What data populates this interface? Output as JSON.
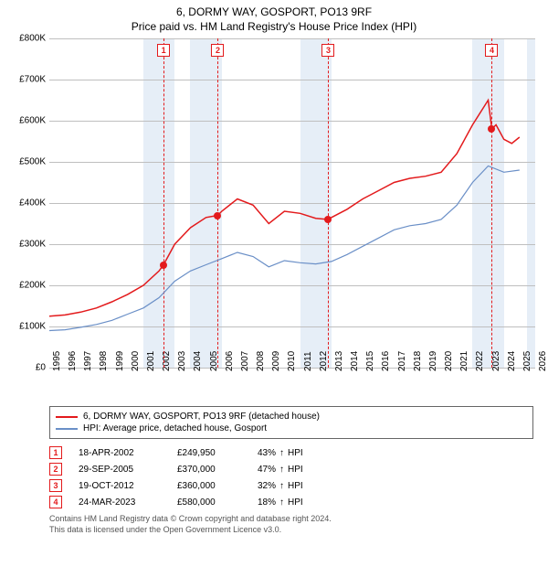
{
  "title": "6, DORMY WAY, GOSPORT, PO13 9RF",
  "subtitle": "Price paid vs. HM Land Registry's House Price Index (HPI)",
  "chart": {
    "type": "line",
    "background_color": "#ffffff",
    "grid_color": "#bfbfbf",
    "band_color": "#e6eef7",
    "y_axis": {
      "min": 0,
      "max": 800000,
      "step": 100000,
      "labels": [
        "£0",
        "£100K",
        "£200K",
        "£300K",
        "£400K",
        "£500K",
        "£600K",
        "£700K",
        "£800K"
      ],
      "label_fontsize": 10
    },
    "x_axis": {
      "min": 1995,
      "max": 2026,
      "step": 1,
      "labels": [
        "1995",
        "1996",
        "1997",
        "1998",
        "1999",
        "2000",
        "2001",
        "2002",
        "2003",
        "2004",
        "2005",
        "2006",
        "2007",
        "2008",
        "2009",
        "2010",
        "2011",
        "2012",
        "2013",
        "2014",
        "2015",
        "2016",
        "2017",
        "2018",
        "2019",
        "2020",
        "2021",
        "2022",
        "2023",
        "2024",
        "2025",
        "2026"
      ],
      "label_fontsize": 10
    },
    "bands": [
      {
        "from": 2001,
        "to": 2003
      },
      {
        "from": 2004,
        "to": 2006
      },
      {
        "from": 2011,
        "to": 2013
      },
      {
        "from": 2022,
        "to": 2024
      },
      {
        "from": 2025.5,
        "to": 2026
      }
    ],
    "series": [
      {
        "name": "price_paid",
        "label": "6, DORMY WAY, GOSPORT, PO13 9RF (detached house)",
        "color": "#e31a1c",
        "line_width": 1.5,
        "points": [
          [
            1995,
            125000
          ],
          [
            1996,
            128000
          ],
          [
            1997,
            135000
          ],
          [
            1998,
            145000
          ],
          [
            1999,
            160000
          ],
          [
            2000,
            178000
          ],
          [
            2001,
            200000
          ],
          [
            2002,
            235000
          ],
          [
            2002.29,
            249950
          ],
          [
            2003,
            300000
          ],
          [
            2004,
            340000
          ],
          [
            2005,
            365000
          ],
          [
            2005.75,
            370000
          ],
          [
            2006,
            380000
          ],
          [
            2007,
            410000
          ],
          [
            2008,
            395000
          ],
          [
            2009,
            350000
          ],
          [
            2010,
            380000
          ],
          [
            2011,
            375000
          ],
          [
            2012,
            363000
          ],
          [
            2012.8,
            360000
          ],
          [
            2013,
            365000
          ],
          [
            2014,
            385000
          ],
          [
            2015,
            410000
          ],
          [
            2016,
            430000
          ],
          [
            2017,
            450000
          ],
          [
            2018,
            460000
          ],
          [
            2019,
            465000
          ],
          [
            2020,
            475000
          ],
          [
            2021,
            520000
          ],
          [
            2022,
            590000
          ],
          [
            2023,
            650000
          ],
          [
            2023.23,
            580000
          ],
          [
            2023.5,
            590000
          ],
          [
            2024,
            555000
          ],
          [
            2024.5,
            545000
          ],
          [
            2025,
            560000
          ]
        ]
      },
      {
        "name": "hpi",
        "label": "HPI: Average price, detached house, Gosport",
        "color": "#6a8fc7",
        "line_width": 1.2,
        "points": [
          [
            1995,
            90000
          ],
          [
            1996,
            92000
          ],
          [
            1997,
            98000
          ],
          [
            1998,
            105000
          ],
          [
            1999,
            115000
          ],
          [
            2000,
            130000
          ],
          [
            2001,
            145000
          ],
          [
            2002,
            170000
          ],
          [
            2003,
            210000
          ],
          [
            2004,
            235000
          ],
          [
            2005,
            250000
          ],
          [
            2006,
            265000
          ],
          [
            2007,
            280000
          ],
          [
            2008,
            270000
          ],
          [
            2009,
            245000
          ],
          [
            2010,
            260000
          ],
          [
            2011,
            255000
          ],
          [
            2012,
            252000
          ],
          [
            2013,
            258000
          ],
          [
            2014,
            275000
          ],
          [
            2015,
            295000
          ],
          [
            2016,
            315000
          ],
          [
            2017,
            335000
          ],
          [
            2018,
            345000
          ],
          [
            2019,
            350000
          ],
          [
            2020,
            360000
          ],
          [
            2021,
            395000
          ],
          [
            2022,
            450000
          ],
          [
            2023,
            490000
          ],
          [
            2024,
            475000
          ],
          [
            2025,
            480000
          ]
        ]
      }
    ],
    "markers": [
      {
        "n": "1",
        "year": 2002.29,
        "value": 249950,
        "color": "#e31a1c"
      },
      {
        "n": "2",
        "year": 2005.75,
        "value": 370000,
        "color": "#e31a1c"
      },
      {
        "n": "3",
        "year": 2012.8,
        "value": 360000,
        "color": "#e31a1c"
      },
      {
        "n": "4",
        "year": 2023.23,
        "value": 580000,
        "color": "#e31a1c"
      }
    ],
    "marker_box_border": "#e31a1c",
    "marker_dashed_color": "#e31a1c"
  },
  "legend": {
    "items": [
      {
        "color": "#e31a1c",
        "label": "6, DORMY WAY, GOSPORT, PO13 9RF (detached house)"
      },
      {
        "color": "#6a8fc7",
        "label": "HPI: Average price, detached house, Gosport"
      }
    ]
  },
  "transactions": [
    {
      "n": "1",
      "date": "18-APR-2002",
      "price": "£249,950",
      "pct": "43%",
      "arrow": "↑",
      "suffix": "HPI"
    },
    {
      "n": "2",
      "date": "29-SEP-2005",
      "price": "£370,000",
      "pct": "47%",
      "arrow": "↑",
      "suffix": "HPI"
    },
    {
      "n": "3",
      "date": "19-OCT-2012",
      "price": "£360,000",
      "pct": "32%",
      "arrow": "↑",
      "suffix": "HPI"
    },
    {
      "n": "4",
      "date": "24-MAR-2023",
      "price": "£580,000",
      "pct": "18%",
      "arrow": "↑",
      "suffix": "HPI"
    }
  ],
  "transaction_box_border": "#e31a1c",
  "footer": {
    "line1": "Contains HM Land Registry data © Crown copyright and database right 2024.",
    "line2": "This data is licensed under the Open Government Licence v3.0."
  }
}
